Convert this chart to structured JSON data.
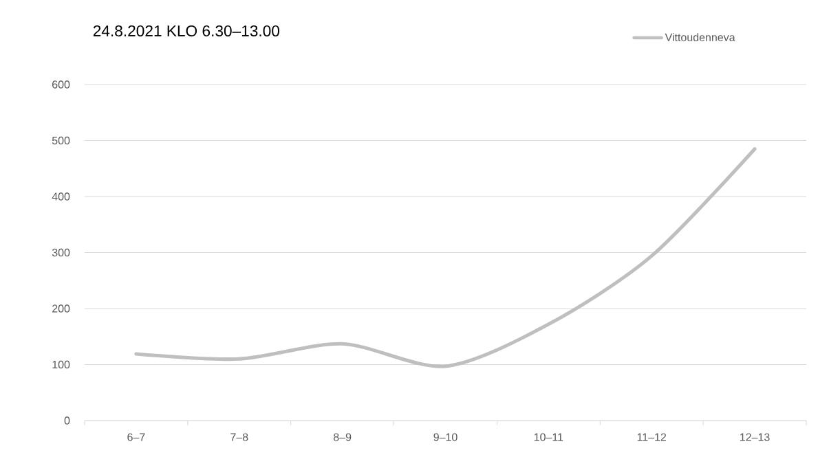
{
  "chart_data": {
    "type": "line",
    "title": "24.8.2021 KLO 6.30–13.00",
    "categories": [
      "6–7",
      "7–8",
      "8–9",
      "9–10",
      "10–11",
      "11–12",
      "12–13"
    ],
    "series": [
      {
        "name": "Vittoudenneva",
        "color": "#bfbfbf",
        "values": [
          119,
          110,
          137,
          97,
          172,
          294,
          485
        ]
      }
    ],
    "ylim": [
      0,
      600
    ],
    "yticks": [
      0,
      100,
      200,
      300,
      400,
      500,
      600
    ],
    "grid": "y",
    "legend": "top right",
    "marker": "none",
    "line_style": "solid"
  }
}
